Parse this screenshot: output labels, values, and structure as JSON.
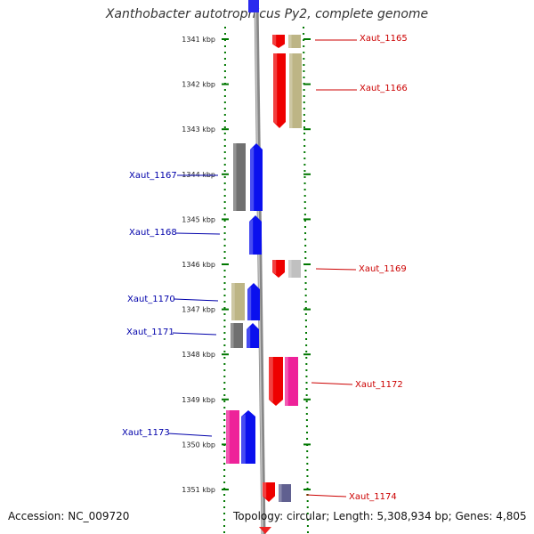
{
  "title": "Xanthobacter autotrophicus Py2, complete genome",
  "footer": {
    "accession": "Accession: NC_009720",
    "topology": "Topology: circular; Length: 5,308,934 bp; Genes: 4,805"
  },
  "kbp_ticks": [
    "1341 kbp",
    "1342 kbp",
    "1343 kbp",
    "1344 kbp",
    "1345 kbp",
    "1346 kbp",
    "1347 kbp",
    "1348 kbp",
    "1349 kbp",
    "1350 kbp",
    "1351 kbp"
  ],
  "colors": {
    "red": "#ee0000",
    "khaki": "#bdb585",
    "blue": "#0a10ee",
    "darkgray": "#707070",
    "lightgray": "#c0c0c0",
    "pink": "#ee2299",
    "tick_green": "#007700",
    "backbone": "#888888"
  },
  "genes": [
    {
      "label": "Xaut_1165",
      "side": "right"
    },
    {
      "label": "Xaut_1166",
      "side": "right"
    },
    {
      "label": "Xaut_1167",
      "side": "left"
    },
    {
      "label": "Xaut_1168",
      "side": "left"
    },
    {
      "label": "Xaut_1169",
      "side": "right"
    },
    {
      "label": "Xaut_1170",
      "side": "left"
    },
    {
      "label": "Xaut_1171",
      "side": "left"
    },
    {
      "label": "Xaut_1172",
      "side": "right"
    },
    {
      "label": "Xaut_1173",
      "side": "left"
    },
    {
      "label": "Xaut_1174",
      "side": "right"
    }
  ]
}
